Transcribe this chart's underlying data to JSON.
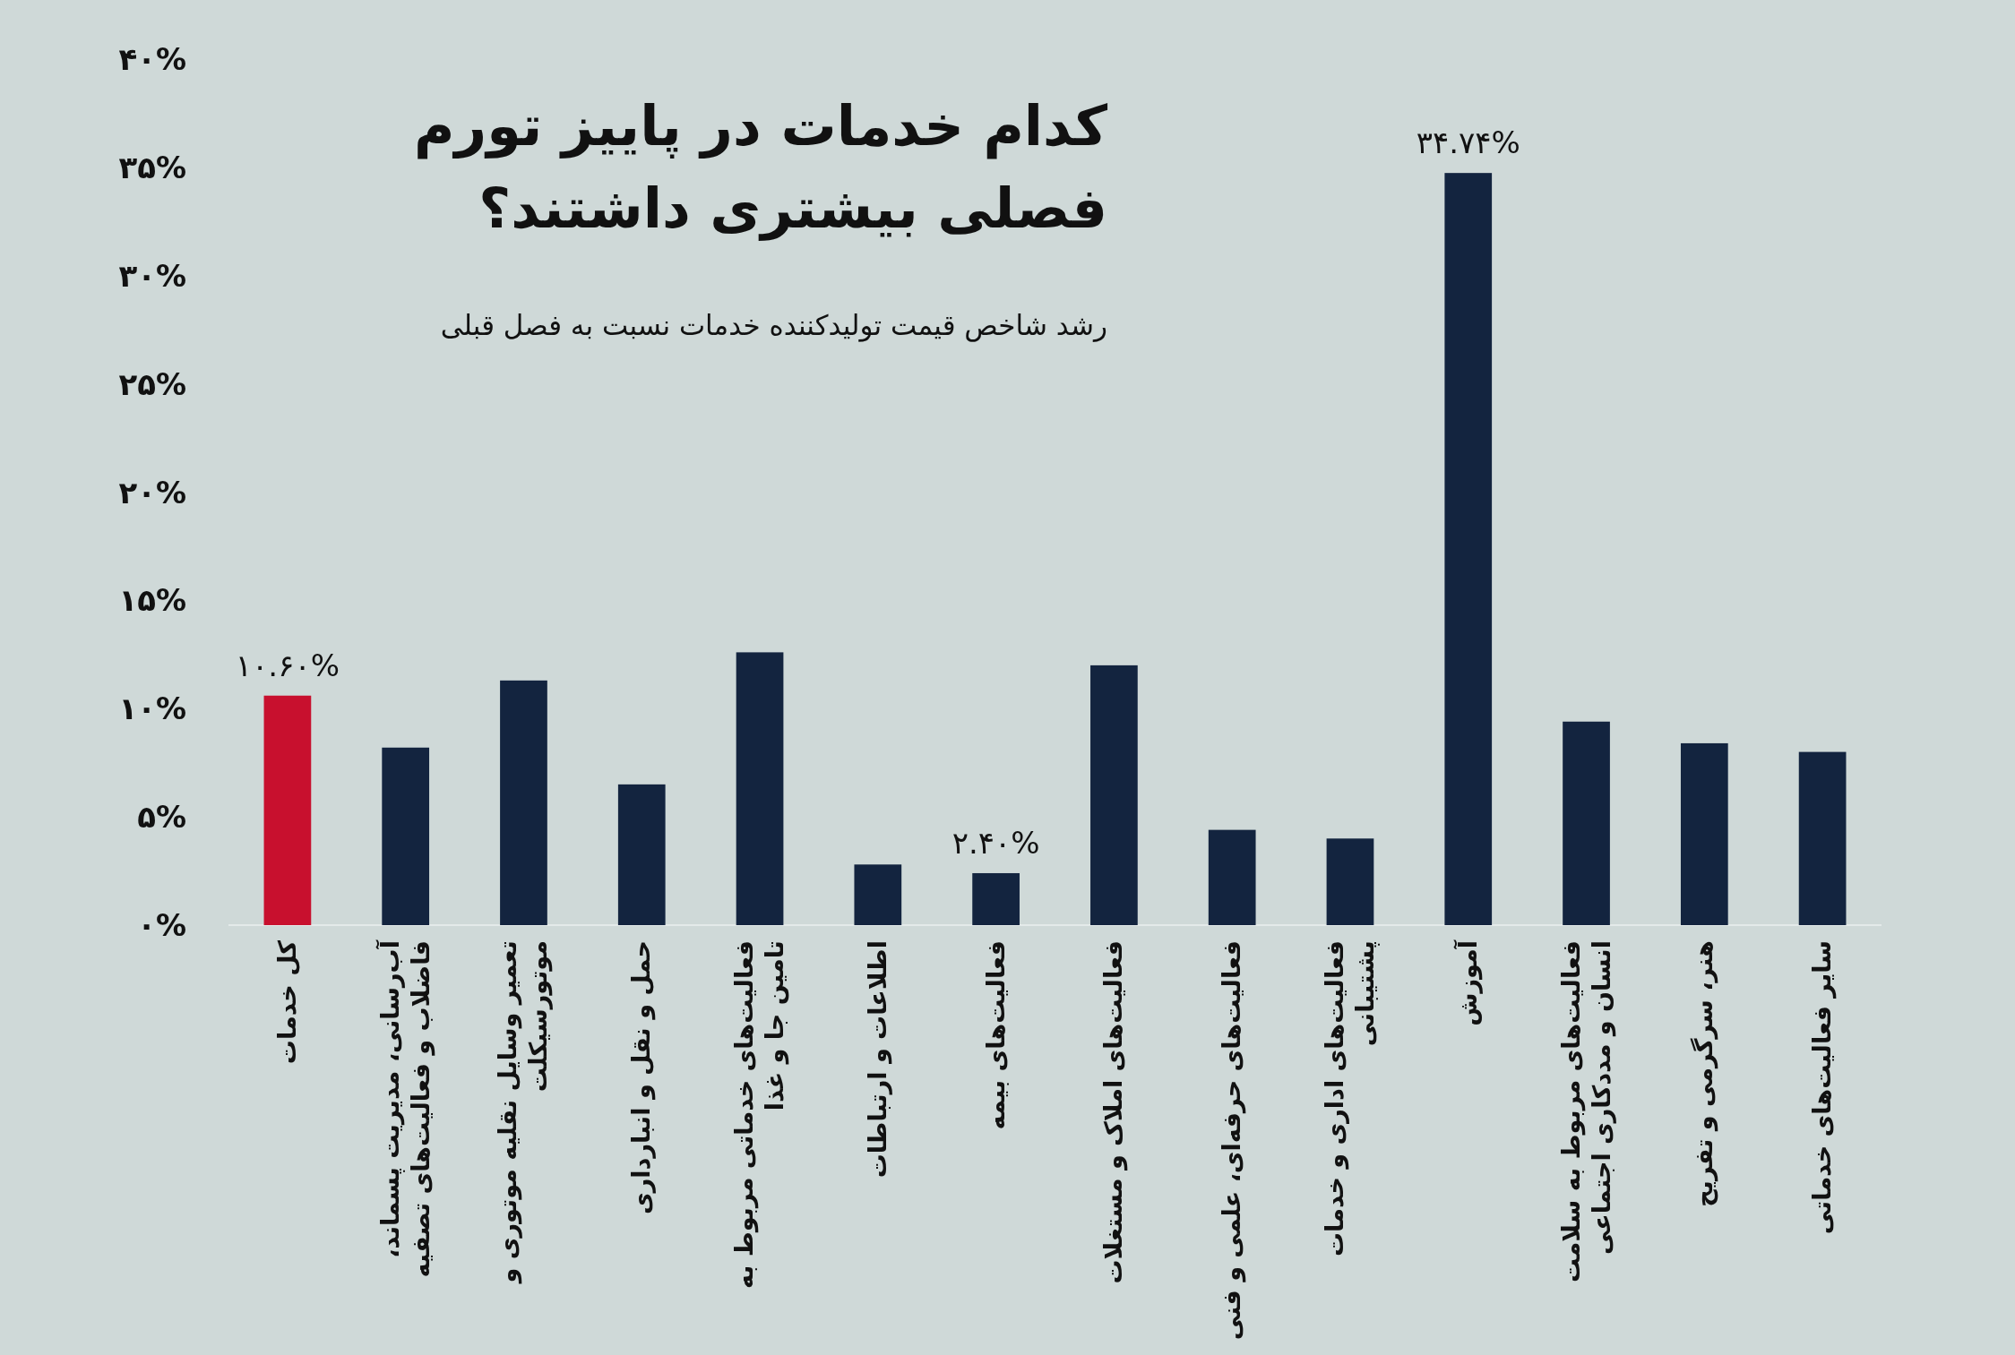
{
  "chart_data": {
    "type": "bar",
    "title": "کدام خدمات در پاییز تورم فصلی بیشتری داشتند؟",
    "subtitle": "رشد شاخص قیمت تولیدکننده خدمات نسبت به فصل قبلی",
    "categories": [
      "کل خدمات",
      "آب‌رسانی، مدیریت پسماند، فاضلاب و فعالیت‌های تصفیه",
      "تعمیر وسایل نقلیه موتوری و موتورسیکلت",
      "حمل و نقل و انبارداری",
      "فعالیت‌های خدماتی مربوط به تامین جا و غذا",
      "اطلاعات و ارتباطات",
      "فعالیت‌های بیمه",
      "فعالیت‌های املاک و مستغلات",
      "فعالیت‌های حرفه‌ای، علمی و فنی",
      "فعالیت‌های اداری و خدمات پشتیبانی",
      "آموزش",
      "فعالیت‌های مربوط به سلامت انسان و مددکاری اجتماعی",
      "هنر، سرگرمی و تفریح",
      "سایر فعالیت‌های خدماتی"
    ],
    "values": [
      10.6,
      8.2,
      11.3,
      6.5,
      12.6,
      2.8,
      2.4,
      12.0,
      4.4,
      4.0,
      34.74,
      9.4,
      8.4,
      8.0
    ],
    "colors": [
      "#c8102e",
      "#13243f",
      "#13243f",
      "#13243f",
      "#13243f",
      "#13243f",
      "#13243f",
      "#13243f",
      "#13243f",
      "#13243f",
      "#13243f",
      "#13243f",
      "#13243f",
      "#13243f"
    ],
    "value_labels": [
      "۱۰.۶۰%",
      null,
      null,
      null,
      null,
      null,
      "۲.۴۰%",
      null,
      null,
      null,
      "۳۴.۷۴%",
      null,
      null,
      null
    ],
    "ylim": [
      0,
      40
    ],
    "yticks": [
      {
        "value": 0,
        "label": "۰%"
      },
      {
        "value": 5,
        "label": "۵%"
      },
      {
        "value": 10,
        "label": "۱۰%"
      },
      {
        "value": 15,
        "label": "۱۵%"
      },
      {
        "value": 20,
        "label": "۲۰%"
      },
      {
        "value": 25,
        "label": "۲۵%"
      },
      {
        "value": 30,
        "label": "۳۰%"
      },
      {
        "value": 35,
        "label": "۳۵%"
      },
      {
        "value": 40,
        "label": "۴۰%"
      }
    ]
  }
}
